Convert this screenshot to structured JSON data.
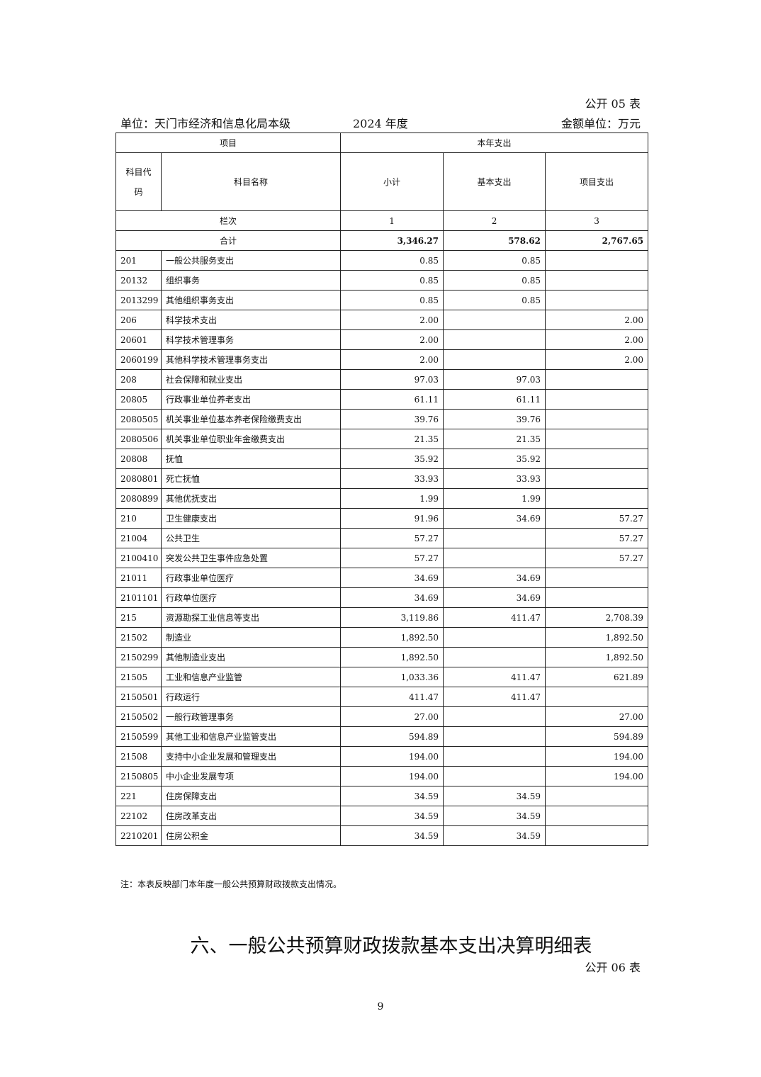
{
  "form_no": "公开 05 表",
  "unit": "单位：天门市经济和信息化局本级",
  "year": "2024 年度",
  "money_unit": "金额单位：万元",
  "header": {
    "item": "项目",
    "this_year": "本年支出",
    "code": "科目代码",
    "name": "科目名称",
    "subtotal": "小计",
    "basic": "基本支出",
    "project": "项目支出",
    "col_index_label": "栏次",
    "col1": "1",
    "col2": "2",
    "col3": "3"
  },
  "total": {
    "label": "合计",
    "subtotal": "3,346.27",
    "basic": "578.62",
    "project": "2,767.65"
  },
  "rows": [
    {
      "code": "201",
      "name": "一般公共服务支出",
      "subtotal": "0.85",
      "basic": "0.85",
      "project": ""
    },
    {
      "code": "20132",
      "name": "组织事务",
      "subtotal": "0.85",
      "basic": "0.85",
      "project": ""
    },
    {
      "code": "2013299",
      "name": "其他组织事务支出",
      "subtotal": "0.85",
      "basic": "0.85",
      "project": ""
    },
    {
      "code": "206",
      "name": "科学技术支出",
      "subtotal": "2.00",
      "basic": "",
      "project": "2.00"
    },
    {
      "code": "20601",
      "name": "科学技术管理事务",
      "subtotal": "2.00",
      "basic": "",
      "project": "2.00"
    },
    {
      "code": "2060199",
      "name": "其他科学技术管理事务支出",
      "subtotal": "2.00",
      "basic": "",
      "project": "2.00"
    },
    {
      "code": "208",
      "name": "社会保障和就业支出",
      "subtotal": "97.03",
      "basic": "97.03",
      "project": ""
    },
    {
      "code": "20805",
      "name": "行政事业单位养老支出",
      "subtotal": "61.11",
      "basic": "61.11",
      "project": ""
    },
    {
      "code": "2080505",
      "name": "机关事业单位基本养老保险缴费支出",
      "subtotal": "39.76",
      "basic": "39.76",
      "project": ""
    },
    {
      "code": "2080506",
      "name": "机关事业单位职业年金缴费支出",
      "subtotal": "21.35",
      "basic": "21.35",
      "project": ""
    },
    {
      "code": "20808",
      "name": "抚恤",
      "subtotal": "35.92",
      "basic": "35.92",
      "project": ""
    },
    {
      "code": "2080801",
      "name": "死亡抚恤",
      "subtotal": "33.93",
      "basic": "33.93",
      "project": ""
    },
    {
      "code": "2080899",
      "name": "其他优抚支出",
      "subtotal": "1.99",
      "basic": "1.99",
      "project": ""
    },
    {
      "code": "210",
      "name": "卫生健康支出",
      "subtotal": "91.96",
      "basic": "34.69",
      "project": "57.27"
    },
    {
      "code": "21004",
      "name": "公共卫生",
      "subtotal": "57.27",
      "basic": "",
      "project": "57.27"
    },
    {
      "code": "2100410",
      "name": "突发公共卫生事件应急处置",
      "subtotal": "57.27",
      "basic": "",
      "project": "57.27"
    },
    {
      "code": "21011",
      "name": "行政事业单位医疗",
      "subtotal": "34.69",
      "basic": "34.69",
      "project": ""
    },
    {
      "code": "2101101",
      "name": "行政单位医疗",
      "subtotal": "34.69",
      "basic": "34.69",
      "project": ""
    },
    {
      "code": "215",
      "name": "资源勘探工业信息等支出",
      "subtotal": "3,119.86",
      "basic": "411.47",
      "project": "2,708.39"
    },
    {
      "code": "21502",
      "name": "制造业",
      "subtotal": "1,892.50",
      "basic": "",
      "project": "1,892.50"
    },
    {
      "code": "2150299",
      "name": "其他制造业支出",
      "subtotal": "1,892.50",
      "basic": "",
      "project": "1,892.50"
    },
    {
      "code": "21505",
      "name": "工业和信息产业监管",
      "subtotal": "1,033.36",
      "basic": "411.47",
      "project": "621.89"
    },
    {
      "code": "2150501",
      "name": "行政运行",
      "subtotal": "411.47",
      "basic": "411.47",
      "project": ""
    },
    {
      "code": "2150502",
      "name": "一般行政管理事务",
      "subtotal": "27.00",
      "basic": "",
      "project": "27.00"
    },
    {
      "code": "2150599",
      "name": "其他工业和信息产业监管支出",
      "subtotal": "594.89",
      "basic": "",
      "project": "594.89"
    },
    {
      "code": "21508",
      "name": "支持中小企业发展和管理支出",
      "subtotal": "194.00",
      "basic": "",
      "project": "194.00"
    },
    {
      "code": "2150805",
      "name": "中小企业发展专项",
      "subtotal": "194.00",
      "basic": "",
      "project": "194.00"
    },
    {
      "code": "221",
      "name": "住房保障支出",
      "subtotal": "34.59",
      "basic": "34.59",
      "project": ""
    },
    {
      "code": "22102",
      "name": "住房改革支出",
      "subtotal": "34.59",
      "basic": "34.59",
      "project": ""
    },
    {
      "code": "2210201",
      "name": "住房公积金",
      "subtotal": "34.59",
      "basic": "34.59",
      "project": ""
    }
  ],
  "note": "注：本表反映部门本年度一般公共预算财政拨款支出情况。",
  "section_title": "六、一般公共预算财政拨款基本支出决算明细表",
  "form_no_next": "公开 06 表",
  "page_number": "9"
}
